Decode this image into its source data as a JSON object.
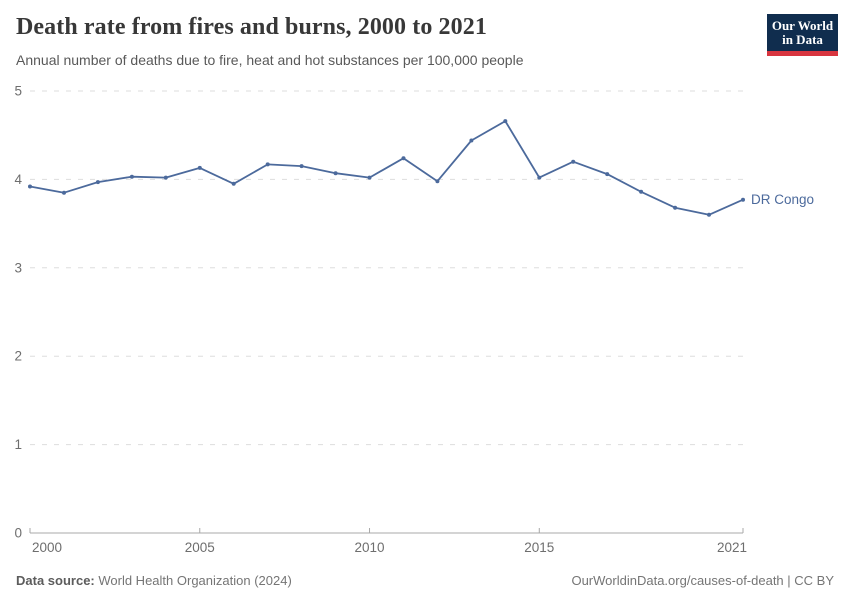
{
  "header": {
    "title": "Death rate from fires and burns, 2000 to 2021",
    "subtitle": "Annual number of deaths due to fire, heat and hot substances per 100,000 people",
    "logo": {
      "line1": "Our World",
      "line2": "in Data"
    }
  },
  "chart_data": {
    "type": "line",
    "title": "Death rate from fires and burns, 2000 to 2021",
    "xlabel": "",
    "ylabel": "Annual number of deaths per 100,000 people",
    "x": [
      2000,
      2001,
      2002,
      2003,
      2004,
      2005,
      2006,
      2007,
      2008,
      2009,
      2010,
      2011,
      2012,
      2013,
      2014,
      2015,
      2016,
      2017,
      2018,
      2019,
      2020,
      2021
    ],
    "series": [
      {
        "name": "DR Congo",
        "color": "#4c6a9c",
        "values": [
          3.92,
          3.85,
          3.97,
          4.03,
          4.02,
          4.13,
          3.95,
          4.17,
          4.15,
          4.07,
          4.02,
          4.24,
          3.98,
          4.44,
          4.66,
          4.02,
          4.2,
          4.06,
          3.86,
          3.68,
          3.6,
          3.77
        ]
      }
    ],
    "xlim": [
      2000,
      2021
    ],
    "ylim": [
      0,
      5
    ],
    "x_ticks": [
      2000,
      2005,
      2010,
      2015,
      2021
    ],
    "y_ticks": [
      0,
      1,
      2,
      3,
      4,
      5
    ],
    "grid": "horizontal-dashed",
    "legend_position": "end-of-line-label",
    "end_label": "DR Congo"
  },
  "colors": {
    "line": "#4c6a9c",
    "grid": "#dddddd",
    "axis": "#a8a8a8",
    "tick_text": "#6e6e6e",
    "end_label_text": "#4c6a9c",
    "logo_bg": "#102d4e",
    "logo_accent": "#d8353f"
  },
  "footer": {
    "source_label": "Data source:",
    "source_text": " World Health Organization (2024)",
    "credit": "OurWorldinData.org/causes-of-death | CC BY"
  }
}
